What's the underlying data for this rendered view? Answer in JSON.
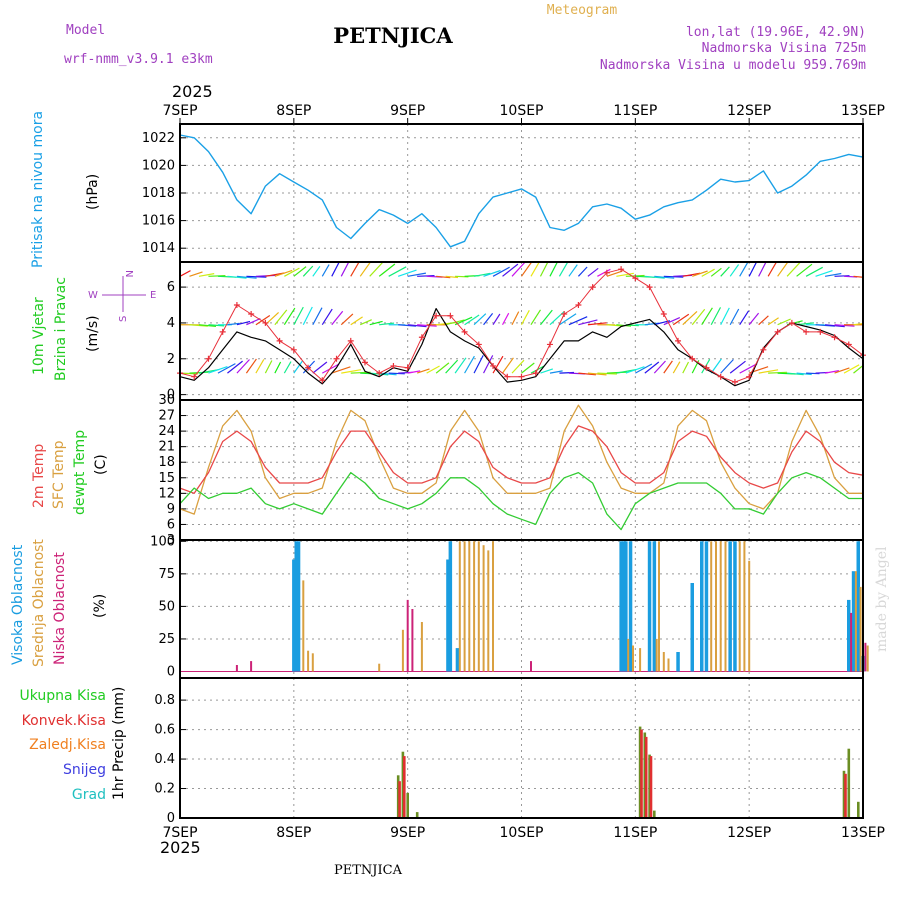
{
  "header": {
    "model_label": "Model",
    "model_name": "wrf-nmm_v3.9.1  e3km",
    "station": "PETNJICA",
    "meteogram": "Meteogram",
    "lonlat": "lon,lat (19.96E, 42.9N)",
    "altitude": "Nadmorska Visina 725m",
    "model_altitude": "Nadmorska Visina u modelu 959.769m",
    "footer_station": "PETNJICA",
    "credit": "made by Angel",
    "year_top": "2025",
    "year_bottom": "2025"
  },
  "colors": {
    "pressure": "#1aa0e6",
    "wind_speed": "#000000",
    "wind_gust": "#e8303a",
    "temp2m": "#e84848",
    "sfc_temp": "#d9a040",
    "dewpt": "#33cc33",
    "cloud_high": "#1a9de0",
    "cloud_mid": "#d9a040",
    "cloud_low": "#cc2277",
    "precip_total": "#6b8e23",
    "precip_conv": "#e03030",
    "precip_frz": "#f08020",
    "snow": "#4040e0",
    "hail": "#20c0c0",
    "label_purple": "#a040c0",
    "label_green": "#22cc22",
    "label_teal": "#20c0c0"
  },
  "chart_data": [
    {
      "id": "pressure",
      "type": "line",
      "ylabel": "(hPa)",
      "title_lines": [
        "Pritisak na nivou mora"
      ],
      "ylim": [
        1013,
        1023
      ],
      "yticks": [
        1014,
        1016,
        1018,
        1020,
        1022
      ],
      "x": [
        0,
        3,
        6,
        9,
        12,
        15,
        18,
        21,
        24,
        27,
        30,
        33,
        36,
        39,
        42,
        45,
        48,
        51,
        54,
        57,
        60,
        63,
        66,
        69,
        72,
        75,
        78,
        81,
        84,
        87,
        90,
        93,
        96,
        99,
        102,
        105,
        108,
        111,
        114,
        117,
        120,
        123,
        126,
        129,
        132,
        135,
        138,
        141,
        144
      ],
      "series": [
        {
          "name": "MSLP",
          "values": [
            1022.2,
            1022.0,
            1021.0,
            1019.5,
            1017.5,
            1016.5,
            1018.5,
            1019.4,
            1018.8,
            1018.2,
            1017.5,
            1015.5,
            1014.7,
            1015.8,
            1016.8,
            1016.4,
            1015.8,
            1016.5,
            1015.5,
            1014.1,
            1014.5,
            1016.5,
            1017.7,
            1018.0,
            1018.3,
            1017.7,
            1015.5,
            1015.3,
            1015.8,
            1017.0,
            1017.2,
            1016.9,
            1016.1,
            1016.4,
            1017.0,
            1017.3,
            1017.5,
            1018.2,
            1019.0,
            1018.8,
            1018.9,
            1019.6,
            1018.0,
            1018.5,
            1019.3,
            1020.3,
            1020.5,
            1020.8,
            1020.6
          ]
        }
      ]
    },
    {
      "id": "wind",
      "type": "line",
      "ylabel": "(m/s)",
      "title_lines": [
        "10m Vjetar",
        "Brzina i Pravac"
      ],
      "compass": {
        "n": "N",
        "w": "W",
        "e": "E",
        "s": "S"
      },
      "ylim": [
        -0.3,
        7.4
      ],
      "yticks": [
        0,
        2,
        4,
        6
      ],
      "x": [
        0,
        3,
        6,
        9,
        12,
        15,
        18,
        21,
        24,
        27,
        30,
        33,
        36,
        39,
        42,
        45,
        48,
        51,
        54,
        57,
        60,
        63,
        66,
        69,
        72,
        75,
        78,
        81,
        84,
        87,
        90,
        93,
        96,
        99,
        102,
        105,
        108,
        111,
        114,
        117,
        120,
        123,
        126,
        129,
        132,
        135,
        138,
        141,
        144
      ],
      "series": [
        {
          "name": "Speed",
          "values": [
            1.0,
            0.8,
            1.5,
            2.5,
            3.5,
            3.2,
            3.0,
            2.5,
            2.0,
            1.2,
            0.6,
            1.5,
            2.8,
            1.3,
            1.0,
            1.5,
            1.3,
            2.8,
            4.8,
            3.5,
            3.0,
            2.6,
            1.6,
            0.7,
            0.8,
            1.0,
            2.0,
            3.0,
            3.0,
            3.5,
            3.2,
            3.8,
            4.0,
            4.2,
            3.5,
            2.5,
            2.0,
            1.4,
            1.0,
            0.5,
            0.8,
            2.6,
            3.5,
            4.0,
            3.8,
            3.6,
            3.3,
            2.6,
            2.0
          ]
        },
        {
          "name": "Gust",
          "values": [
            1.2,
            1.0,
            2.0,
            3.5,
            5.0,
            4.5,
            4.0,
            3.0,
            2.5,
            1.5,
            0.8,
            2.0,
            3.0,
            1.8,
            1.2,
            1.6,
            1.5,
            3.2,
            4.4,
            4.4,
            3.5,
            2.8,
            1.6,
            1.0,
            1.0,
            1.2,
            2.8,
            4.5,
            5.0,
            6.0,
            6.8,
            7.0,
            6.5,
            6.0,
            4.5,
            3.0,
            2.0,
            1.5,
            1.0,
            0.7,
            1.0,
            2.5,
            3.5,
            4.0,
            3.5,
            3.5,
            3.2,
            2.8,
            2.2
          ]
        }
      ],
      "vector_rows": [
        6.6,
        3.9,
        1.2
      ]
    },
    {
      "id": "temperature",
      "type": "line",
      "ylabel": "(C)",
      "title_lines": [
        "2m Temp",
        "SFC Temp",
        "dewpt Temp"
      ],
      "ylim": [
        3,
        30
      ],
      "yticks": [
        3,
        6,
        9,
        12,
        15,
        18,
        21,
        24,
        27,
        30
      ],
      "x": [
        0,
        3,
        6,
        9,
        12,
        15,
        18,
        21,
        24,
        27,
        30,
        33,
        36,
        39,
        42,
        45,
        48,
        51,
        54,
        57,
        60,
        63,
        66,
        69,
        72,
        75,
        78,
        81,
        84,
        87,
        90,
        93,
        96,
        99,
        102,
        105,
        108,
        111,
        114,
        117,
        120,
        123,
        126,
        129,
        132,
        135,
        138,
        141,
        144
      ],
      "series": [
        {
          "name": "2m Temp",
          "values": [
            13,
            12,
            16,
            22,
            24,
            22,
            17,
            14,
            14,
            14,
            15,
            20,
            24,
            24,
            20,
            16,
            14,
            14,
            15,
            21,
            24,
            22,
            17,
            15,
            14,
            14,
            15,
            21,
            25,
            24,
            21,
            16,
            14,
            14,
            16,
            22,
            24,
            23,
            19,
            16,
            14,
            13,
            14,
            20,
            24,
            22,
            18,
            16,
            15.5
          ]
        },
        {
          "name": "SFC Temp",
          "values": [
            9,
            8,
            17,
            25,
            28,
            24,
            15,
            11,
            12,
            12,
            13,
            22,
            28,
            26,
            19,
            13,
            12,
            12,
            14,
            24,
            28,
            24,
            15,
            12,
            12,
            12,
            13,
            24,
            29,
            25,
            18,
            13,
            12,
            12,
            14,
            25,
            28,
            26,
            18,
            13,
            10,
            9,
            12,
            22,
            28,
            23,
            15,
            12,
            12
          ]
        },
        {
          "name": "dewpt Temp",
          "values": [
            10,
            13,
            11,
            12,
            12,
            13,
            10,
            9,
            10,
            9,
            8,
            12,
            16,
            14,
            11,
            10,
            9,
            10,
            12,
            15,
            15,
            13,
            10,
            8,
            7,
            6,
            12,
            15,
            16,
            14,
            8,
            5,
            10,
            12,
            13,
            14,
            14,
            14,
            12,
            9,
            9,
            8,
            12,
            15,
            16,
            15,
            13,
            11,
            11
          ]
        }
      ]
    },
    {
      "id": "cloud",
      "type": "bar",
      "ylabel": "(%)",
      "title_lines": [
        "Visoka Oblacnost",
        "Srednja Oblacnost",
        "Niska Oblacnost"
      ],
      "ylim": [
        -5,
        101
      ],
      "yticks": [
        0,
        25,
        50,
        75,
        100
      ],
      "series": [
        {
          "name": "Visoka Oblacnost",
          "bars": [
            [
              24,
              86
            ],
            [
              24.5,
              100
            ],
            [
              25,
              100
            ],
            [
              56.5,
              86
            ],
            [
              57,
              100
            ],
            [
              58.5,
              18
            ],
            [
              93,
              100
            ],
            [
              93.5,
              100
            ],
            [
              94,
              100
            ],
            [
              95,
              100
            ],
            [
              99,
              100
            ],
            [
              100,
              100
            ],
            [
              105,
              15
            ],
            [
              108,
              68
            ],
            [
              110,
              100
            ],
            [
              111,
              100
            ],
            [
              116,
              100
            ],
            [
              117,
              100
            ],
            [
              141,
              55
            ],
            [
              142,
              77
            ],
            [
              143,
              100
            ],
            [
              144,
              12
            ]
          ]
        },
        {
          "name": "Srednja Oblacnost",
          "bars": [
            [
              26,
              70
            ],
            [
              27,
              16
            ],
            [
              28,
              14
            ],
            [
              42,
              6
            ],
            [
              47,
              32
            ],
            [
              51,
              38
            ],
            [
              59,
              100
            ],
            [
              60,
              100
            ],
            [
              61,
              100
            ],
            [
              62,
              100
            ],
            [
              63,
              100
            ],
            [
              64,
              97
            ],
            [
              65,
              93
            ],
            [
              66,
              100
            ],
            [
              94.5,
              25
            ],
            [
              95.5,
              20
            ],
            [
              97,
              18
            ],
            [
              100.5,
              25
            ],
            [
              101,
              100
            ],
            [
              102,
              15
            ],
            [
              103,
              10
            ],
            [
              112,
              100
            ],
            [
              113,
              100
            ],
            [
              114,
              100
            ],
            [
              115,
              100
            ],
            [
              118,
              100
            ],
            [
              119,
              100
            ],
            [
              120,
              85
            ],
            [
              142.5,
              77
            ],
            [
              143.5,
              65
            ],
            [
              145,
              20
            ]
          ]
        },
        {
          "name": "Niska Oblacnost",
          "bars": [
            [
              12,
              5
            ],
            [
              15,
              8
            ],
            [
              48,
              55
            ],
            [
              49,
              48
            ],
            [
              74,
              8
            ],
            [
              141.5,
              45
            ],
            [
              144.5,
              22
            ]
          ]
        }
      ]
    },
    {
      "id": "precip",
      "type": "bar",
      "ylabel": "1hr Precip (mm)",
      "title_lines": [
        "Ukupna Kisa",
        "Konvek.Kisa",
        "Zaledj.Kisa",
        "Snijeg",
        "Grad"
      ],
      "ylim": [
        0,
        0.95
      ],
      "yticks": [
        0,
        0.2,
        0.4,
        0.6,
        0.8
      ],
      "series": [
        {
          "name": "Ukupna Kisa",
          "bars": [
            [
              46,
              0.29
            ],
            [
              47,
              0.45
            ],
            [
              48,
              0.17
            ],
            [
              50,
              0.04
            ],
            [
              97,
              0.62
            ],
            [
              98,
              0.58
            ],
            [
              99,
              0.43
            ],
            [
              100,
              0.05
            ],
            [
              140,
              0.32
            ],
            [
              141,
              0.47
            ],
            [
              143,
              0.11
            ]
          ]
        },
        {
          "name": "Konvek.Kisa",
          "bars": [
            [
              46.3,
              0.25
            ],
            [
              47.3,
              0.42
            ],
            [
              97.3,
              0.6
            ],
            [
              98.3,
              0.55
            ],
            [
              99.3,
              0.42
            ],
            [
              140.3,
              0.3
            ]
          ]
        }
      ]
    }
  ],
  "x_axis": {
    "hours_total": 144,
    "top_labels": [
      "7SEP",
      "8SEP",
      "9SEP",
      "10SEP",
      "11SEP",
      "12SEP",
      "13SEP"
    ],
    "bottom_labels": [
      "7SEP",
      "8SEP",
      "9SEP",
      "10SEP",
      "11SEP",
      "12SEP",
      "13SEP"
    ]
  }
}
